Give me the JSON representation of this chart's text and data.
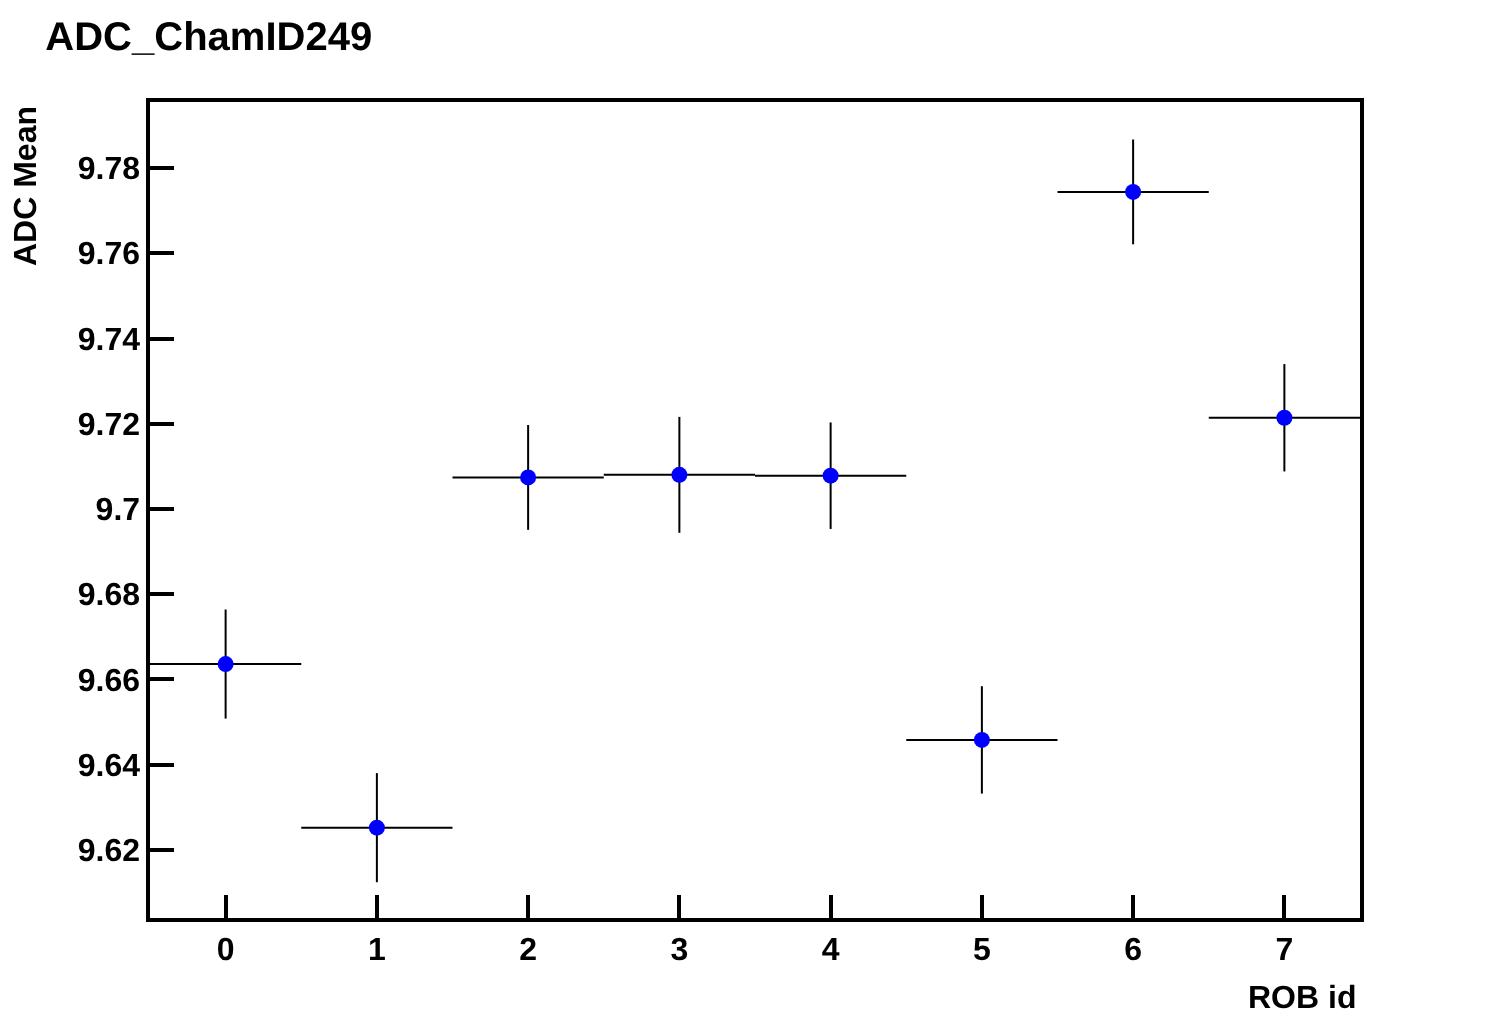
{
  "chart_data": {
    "type": "scatter",
    "title": "ADC_ChamID249",
    "xlabel": "ROB id",
    "ylabel": "ADC Mean",
    "x": [
      0,
      1,
      2,
      3,
      4,
      5,
      6,
      7
    ],
    "values": [
      9.6636,
      9.6252,
      9.7074,
      9.708,
      9.7078,
      9.6458,
      9.7744,
      9.7214
    ],
    "errors": [
      0.0128,
      0.0128,
      0.0123,
      0.0136,
      0.0125,
      0.0126,
      0.0123,
      0.0126
    ],
    "xerrors": [
      0.5,
      0.5,
      0.5,
      0.5,
      0.5,
      0.5,
      0.5,
      0.5
    ],
    "color": "#0000ff",
    "marker": "circle",
    "xlim": [
      -0.5,
      7.5
    ],
    "ylim": [
      9.604,
      9.7955
    ],
    "xticks": [
      0,
      1,
      2,
      3,
      4,
      5,
      6,
      7
    ],
    "yticks": [
      9.62,
      9.64,
      9.66,
      9.68,
      {
        "value": 9.7,
        "label": "9.7"
      },
      9.72,
      9.74,
      9.76,
      9.78
    ]
  }
}
